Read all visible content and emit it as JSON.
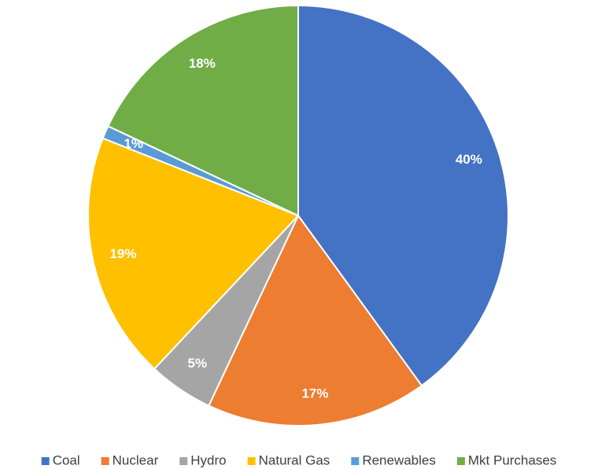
{
  "chart_data": {
    "type": "pie",
    "categories": [
      "Coal",
      "Nuclear",
      "Hydro",
      "Natural Gas",
      "Renewables",
      "Mkt Purchases"
    ],
    "values": [
      40,
      17,
      5,
      19,
      1,
      18
    ],
    "value_labels": [
      "40%",
      "17%",
      "5%",
      "19%",
      "1%",
      "18%"
    ],
    "colors": [
      "#4472c4",
      "#ed7d31",
      "#a5a5a5",
      "#ffc000",
      "#5b9bd5",
      "#70ad47"
    ],
    "legend": "bottom"
  }
}
